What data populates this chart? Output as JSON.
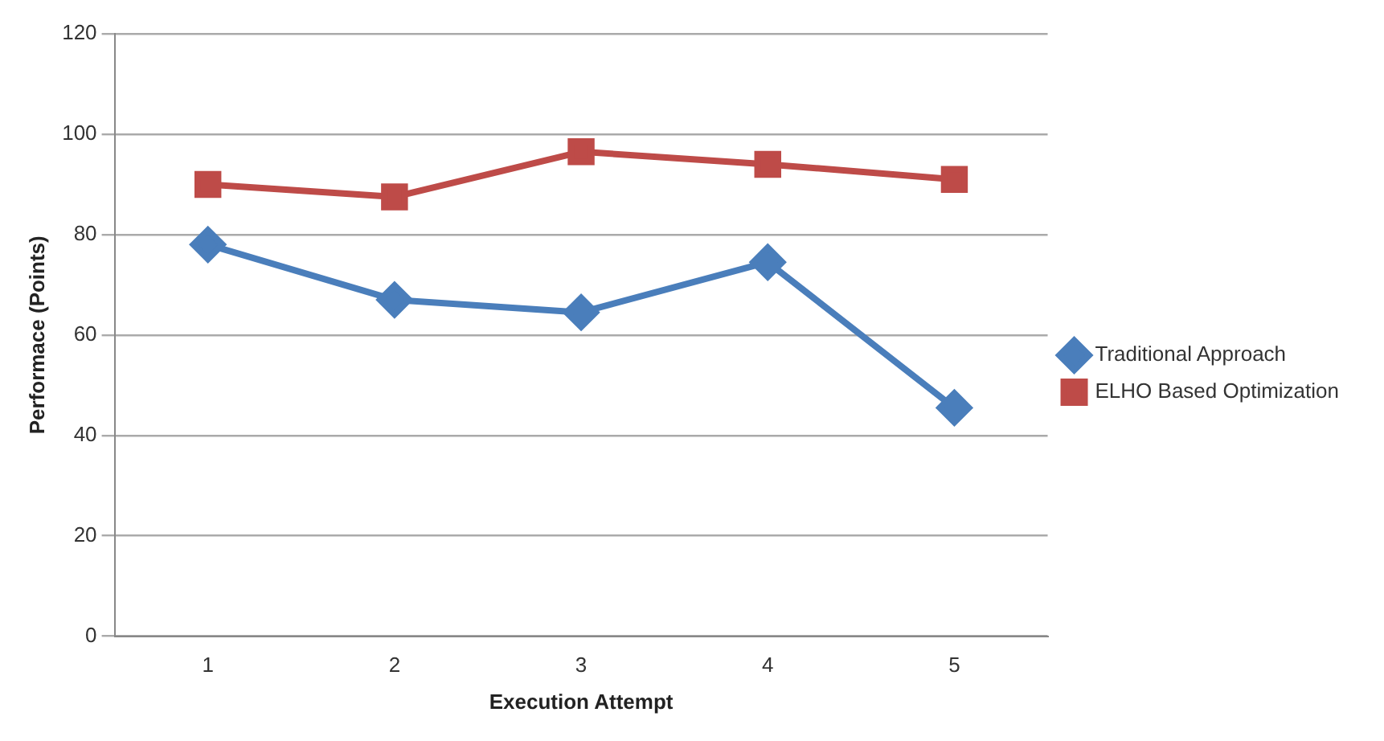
{
  "chart_data": {
    "type": "line",
    "xlabel": "Execution Attempt",
    "ylabel": "Performace (Points)",
    "categories": [
      "1",
      "2",
      "3",
      "4",
      "5"
    ],
    "series": [
      {
        "name": "Traditional Approach",
        "color": "#4a7ebb",
        "marker": "diamond",
        "values": [
          78,
          67,
          64.5,
          74.5,
          45.5
        ]
      },
      {
        "name": "ELHO Based Optimization",
        "color": "#be4b48",
        "marker": "square",
        "values": [
          90,
          87.5,
          96.5,
          94,
          91
        ]
      }
    ],
    "ylim": [
      0,
      120
    ],
    "yticks": [
      0,
      20,
      40,
      60,
      80,
      100,
      120
    ],
    "grid": "y",
    "legend": "right",
    "line_style": "solid"
  }
}
